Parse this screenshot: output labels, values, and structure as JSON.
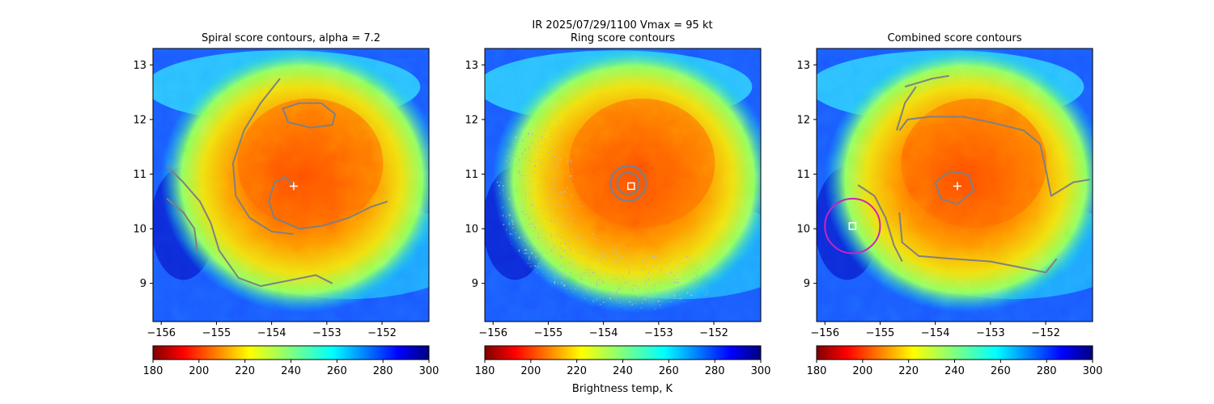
{
  "figure": {
    "suptitle_line1": "IR  2025/07/29/1100    Vmax = 95 kt",
    "colorbar_label": "Brightness temp, K"
  },
  "colormap": {
    "name": "jet_r",
    "vmin": 180,
    "vmax": 300,
    "ticks": [
      180,
      200,
      220,
      240,
      260,
      280,
      300
    ]
  },
  "contour_color": "#808080",
  "marker_color_center": "#ffffff",
  "marker_color_combined_circle": "#d020c0",
  "chart_data": [
    {
      "type": "heatmap",
      "title": "Spiral score contours, alpha =  7.2",
      "xlim": [
        -156.15,
        -151.15
      ],
      "ylim": [
        8.3,
        13.3
      ],
      "xticks": [
        -156,
        -155,
        -154,
        -153,
        -152
      ],
      "yticks": [
        9,
        10,
        11,
        12,
        13
      ],
      "storm_center": [
        -153.6,
        10.78
      ],
      "contours": [
        [
          [
            -153.6,
            10.78
          ],
          [
            -153.75,
            10.95
          ],
          [
            -153.95,
            10.85
          ],
          [
            -154.05,
            10.5
          ],
          [
            -153.95,
            10.2
          ],
          [
            -153.5,
            10.0
          ],
          [
            -153.1,
            10.05
          ],
          [
            -152.6,
            10.2
          ],
          [
            -152.2,
            10.4
          ],
          [
            -151.9,
            10.5
          ]
        ],
        [
          [
            -153.3,
            11.85
          ],
          [
            -152.9,
            11.9
          ],
          [
            -152.85,
            12.1
          ],
          [
            -153.1,
            12.3
          ],
          [
            -153.5,
            12.3
          ],
          [
            -153.8,
            12.2
          ],
          [
            -153.7,
            11.95
          ],
          [
            -153.3,
            11.85
          ]
        ],
        [
          [
            -153.85,
            12.75
          ],
          [
            -154.2,
            12.3
          ],
          [
            -154.5,
            11.8
          ],
          [
            -154.7,
            11.2
          ],
          [
            -154.65,
            10.6
          ],
          [
            -154.4,
            10.2
          ],
          [
            -154.0,
            9.95
          ],
          [
            -153.6,
            9.9
          ]
        ],
        [
          [
            -155.9,
            11.15
          ],
          [
            -155.6,
            10.85
          ],
          [
            -155.3,
            10.5
          ],
          [
            -155.1,
            10.1
          ],
          [
            -154.95,
            9.6
          ],
          [
            -154.6,
            9.1
          ],
          [
            -154.2,
            8.95
          ],
          [
            -153.7,
            9.05
          ],
          [
            -153.2,
            9.15
          ],
          [
            -152.9,
            9.0
          ]
        ],
        [
          [
            -155.9,
            10.55
          ],
          [
            -155.6,
            10.3
          ],
          [
            -155.4,
            10.0
          ],
          [
            -155.35,
            9.6
          ]
        ]
      ]
    },
    {
      "type": "heatmap",
      "title": "Ring score contours",
      "xlim": [
        -156.15,
        -151.15
      ],
      "ylim": [
        8.3,
        13.3
      ],
      "xticks": [
        -156,
        -155,
        -154,
        -153,
        -152
      ],
      "yticks": [
        9,
        10,
        11,
        12,
        13
      ],
      "storm_center": [
        -153.5,
        10.78
      ],
      "ring_contours": [
        {
          "center": [
            -153.55,
            10.83
          ],
          "radius": 0.2
        },
        {
          "center": [
            -153.55,
            10.83
          ],
          "radius": 0.32
        }
      ],
      "noisy_region": true
    },
    {
      "type": "heatmap",
      "title": "Combined score contours",
      "xlim": [
        -156.15,
        -151.15
      ],
      "ylim": [
        8.3,
        13.3
      ],
      "xticks": [
        -156,
        -155,
        -154,
        -153,
        -152
      ],
      "yticks": [
        9,
        10,
        11,
        12,
        13
      ],
      "storm_center": [
        -153.6,
        10.78
      ],
      "alt_center": [
        -155.5,
        10.05
      ],
      "alt_circle_radius": 0.5,
      "contours": [
        [
          [
            -153.6,
            10.45
          ],
          [
            -153.9,
            10.55
          ],
          [
            -154.0,
            10.85
          ],
          [
            -153.75,
            11.05
          ],
          [
            -153.4,
            11.0
          ],
          [
            -153.3,
            10.7
          ],
          [
            -153.6,
            10.45
          ]
        ],
        [
          [
            -154.65,
            11.8
          ],
          [
            -154.5,
            12.0
          ],
          [
            -154.1,
            12.05
          ],
          [
            -153.5,
            12.05
          ],
          [
            -153.0,
            11.95
          ],
          [
            -152.4,
            11.8
          ],
          [
            -152.1,
            11.55
          ],
          [
            -152.0,
            11.1
          ],
          [
            -151.9,
            10.6
          ],
          [
            -151.5,
            10.85
          ],
          [
            -151.2,
            10.9
          ]
        ],
        [
          [
            -154.65,
            10.3
          ],
          [
            -154.6,
            9.75
          ],
          [
            -154.3,
            9.5
          ],
          [
            -153.7,
            9.45
          ],
          [
            -153.0,
            9.4
          ],
          [
            -152.5,
            9.3
          ],
          [
            -152.0,
            9.2
          ],
          [
            -151.8,
            9.45
          ]
        ],
        [
          [
            -154.35,
            12.6
          ],
          [
            -154.55,
            12.3
          ],
          [
            -154.7,
            11.8
          ]
        ],
        [
          [
            -155.4,
            10.8
          ],
          [
            -155.1,
            10.6
          ],
          [
            -154.9,
            10.2
          ],
          [
            -154.75,
            9.7
          ],
          [
            -154.6,
            9.4
          ]
        ],
        [
          [
            -154.55,
            12.6
          ],
          [
            -154.05,
            12.75
          ],
          [
            -153.75,
            12.8
          ]
        ]
      ]
    }
  ]
}
